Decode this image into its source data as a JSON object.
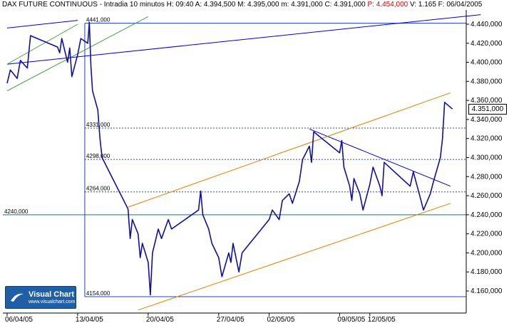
{
  "header": {
    "instrument": "DAX FUTURE CONTINUOUS",
    "stats_prefix": "- Intradia 10 minutos  H: 09:40  A: 4.394,500  M: 4.395,000  m: 4.391,000  C: 4.391,000",
    "p_value": "P: 4.454,000",
    "stats_suffix": "V: 1.165  F: 06/04/2005"
  },
  "logo": {
    "title": "Visual Chart",
    "url": "www.visualchart.com"
  },
  "last_price_label": "4.351,000",
  "colors": {
    "candles": "#1010a0",
    "resistance": "#0000cc",
    "channel_orange": "#e08000",
    "channel_green": "#40a040",
    "levels": "#2040c0",
    "support_4240": "#008080",
    "background": "#ffffff"
  },
  "chart_data": {
    "type": "line",
    "title": "DAX FUTURE CONTINUOUS",
    "xlabel": "",
    "ylabel": "",
    "ylim": [
      4146,
      4450
    ],
    "grid": false,
    "y_ticks": [
      "4.440,000",
      "4.420,000",
      "4.400,000",
      "4.380,000",
      "4.360,000",
      "4.340,000",
      "4.320,000",
      "4.300,000",
      "4.280,000",
      "4.260,000",
      "4.240,000",
      "4.220,000",
      "4.200,000",
      "4.180,000",
      "4.160,000"
    ],
    "y_tick_values": [
      4440,
      4420,
      4400,
      4380,
      4360,
      4340,
      4320,
      4300,
      4280,
      4260,
      4240,
      4220,
      4200,
      4180,
      4160
    ],
    "x_labels": [
      "06/04/05",
      "13/04/05",
      "20/04/05",
      "27/04/05",
      "02/05/05",
      "09/05/05",
      "12/05/05"
    ],
    "x_label_dates": [
      "2005-04-06",
      "2005-04-13",
      "2005-04-20",
      "2005-04-27",
      "2005-05-02",
      "2005-05-09",
      "2005-05-12"
    ],
    "levels": [
      {
        "label": "4441,000",
        "value": 4441
      },
      {
        "label": "4331,000",
        "value": 4331
      },
      {
        "label": "4298,000",
        "value": 4298
      },
      {
        "label": "4264,000",
        "value": 4264
      },
      {
        "label": "4240,000",
        "value": 4240
      },
      {
        "label": "4154,000",
        "value": 4154
      }
    ],
    "series": [
      {
        "points": [
          [
            "2005-04-06",
            4378
          ],
          [
            "2005-04-06",
            4392
          ],
          [
            "2005-04-07",
            4383
          ],
          [
            "2005-04-07",
            4402
          ],
          [
            "2005-04-08",
            4394
          ],
          [
            "2005-04-08",
            4428
          ],
          [
            "2005-04-11",
            4416
          ],
          [
            "2005-04-11",
            4410
          ],
          [
            "2005-04-11",
            4425
          ],
          [
            "2005-04-12",
            4400
          ],
          [
            "2005-04-12",
            4415
          ],
          [
            "2005-04-12",
            4385
          ],
          [
            "2005-04-13",
            4408
          ],
          [
            "2005-04-13",
            4425
          ],
          [
            "2005-04-14",
            4420
          ],
          [
            "2005-04-14",
            4442
          ],
          [
            "2005-04-14",
            4395
          ],
          [
            "2005-04-14",
            4370
          ],
          [
            "2005-04-15",
            4350
          ],
          [
            "2005-04-15",
            4320
          ],
          [
            "2005-04-15",
            4300
          ],
          [
            "2005-04-18",
            4246
          ],
          [
            "2005-04-18",
            4215
          ],
          [
            "2005-04-18",
            4235
          ],
          [
            "2005-04-19",
            4220
          ],
          [
            "2005-04-19",
            4195
          ],
          [
            "2005-04-19",
            4210
          ],
          [
            "2005-04-20",
            4190
          ],
          [
            "2005-04-20",
            4156
          ],
          [
            "2005-04-20",
            4200
          ],
          [
            "2005-04-21",
            4225
          ],
          [
            "2005-04-21",
            4215
          ],
          [
            "2005-04-22",
            4235
          ],
          [
            "2005-04-22",
            4225
          ],
          [
            "2005-04-25",
            4245
          ],
          [
            "2005-04-25",
            4265
          ],
          [
            "2005-04-25",
            4240
          ],
          [
            "2005-04-26",
            4225
          ],
          [
            "2005-04-26",
            4210
          ],
          [
            "2005-04-27",
            4195
          ],
          [
            "2005-04-27",
            4175
          ],
          [
            "2005-04-28",
            4200
          ],
          [
            "2005-04-28",
            4190
          ],
          [
            "2005-04-28",
            4210
          ],
          [
            "2005-04-29",
            4180
          ],
          [
            "2005-04-29",
            4200
          ],
          [
            "2005-05-02",
            4235
          ],
          [
            "2005-05-02",
            4245
          ],
          [
            "2005-05-03",
            4235
          ],
          [
            "2005-05-03",
            4255
          ],
          [
            "2005-05-04",
            4262
          ],
          [
            "2005-05-04",
            4252
          ],
          [
            "2005-05-05",
            4275
          ],
          [
            "2005-05-05",
            4298
          ],
          [
            "2005-05-06",
            4312
          ],
          [
            "2005-05-06",
            4295
          ],
          [
            "2005-05-06",
            4327
          ],
          [
            "2005-05-09",
            4305
          ],
          [
            "2005-05-09",
            4318
          ],
          [
            "2005-05-09",
            4290
          ],
          [
            "2005-05-10",
            4270
          ],
          [
            "2005-05-10",
            4255
          ],
          [
            "2005-05-10",
            4278
          ],
          [
            "2005-05-11",
            4262
          ],
          [
            "2005-05-11",
            4245
          ],
          [
            "2005-05-12",
            4272
          ],
          [
            "2005-05-12",
            4290
          ],
          [
            "2005-05-13",
            4270
          ],
          [
            "2005-05-13",
            4260
          ],
          [
            "2005-05-13",
            4295
          ],
          [
            "2005-05-16",
            4270
          ],
          [
            "2005-05-16",
            4285
          ],
          [
            "2005-05-17",
            4258
          ],
          [
            "2005-05-17",
            4245
          ],
          [
            "2005-05-18",
            4262
          ],
          [
            "2005-05-18",
            4275
          ],
          [
            "2005-05-19",
            4300
          ],
          [
            "2005-05-19",
            4320
          ],
          [
            "2005-05-19",
            4358
          ],
          [
            "2005-05-20",
            4351
          ]
        ]
      }
    ],
    "trendlines": [
      {
        "kind": "resistance",
        "from": [
          "2005-04-06",
          4398
        ],
        "to": [
          "2005-05-23",
          4450
        ]
      },
      {
        "kind": "resistance",
        "from": [
          "2005-04-06",
          4436
        ],
        "to": [
          "2005-04-13",
          4444
        ]
      },
      {
        "kind": "resistance",
        "from": [
          "2005-05-06",
          4330
        ],
        "to": [
          "2005-05-20",
          4270
        ]
      },
      {
        "kind": "channel_upper",
        "from": [
          "2005-04-18",
          4248
        ],
        "to": [
          "2005-05-20",
          4368
        ]
      },
      {
        "kind": "channel_lower",
        "from": [
          "2005-04-19",
          4140
        ],
        "to": [
          "2005-05-20",
          4252
        ]
      },
      {
        "kind": "green",
        "from": [
          "2005-04-06",
          4370
        ],
        "to": [
          "2005-04-20",
          4448
        ]
      },
      {
        "kind": "green",
        "from": [
          "2005-04-06",
          4398
        ],
        "to": [
          "2005-04-13",
          4440
        ]
      }
    ]
  }
}
